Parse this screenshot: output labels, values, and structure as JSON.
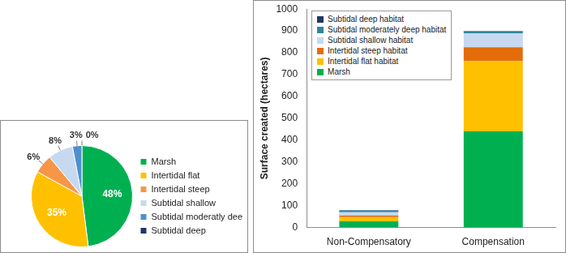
{
  "chart_data": [
    {
      "type": "pie",
      "categories": [
        "Marsh",
        "Intertidal flat",
        "Intertidal steep",
        "Subtidal shallow",
        "Subtidal moderatly deep",
        "Subtidal deep"
      ],
      "values": [
        48,
        35,
        6,
        8,
        3,
        0
      ],
      "value_labels": [
        "48%",
        "35%",
        "6%",
        "8%",
        "3%",
        "0%"
      ],
      "colors": [
        "#00b050",
        "#ffc000",
        "#f79646",
        "#c6d9f1",
        "#4f8fd0",
        "#1f3864"
      ],
      "data_labels": true,
      "legend": "right"
    },
    {
      "type": "bar",
      "stacked": true,
      "y_label": "Surface created (hectares)",
      "categories": [
        "Non-Compensatory",
        "Compensation"
      ],
      "series": [
        {
          "name": "Marsh",
          "color": "#00b050",
          "values": [
            28,
            440
          ]
        },
        {
          "name": "Intertidal flat habitat",
          "color": "#ffc000",
          "values": [
            20,
            322
          ]
        },
        {
          "name": "Intertidal steep habitat",
          "color": "#e46c0a",
          "values": [
            7,
            63
          ]
        },
        {
          "name": "Subtidal shallow habitat",
          "color": "#c6d9f1",
          "values": [
            15,
            63
          ]
        },
        {
          "name": "Subtidal moderately deep habitat",
          "color": "#31869b",
          "values": [
            8,
            10
          ]
        },
        {
          "name": "Subtidal deep habitat",
          "color": "#1f3864",
          "values": [
            2,
            2
          ]
        }
      ],
      "ylim": [
        0,
        1000
      ],
      "yticks": [
        0,
        100,
        200,
        300,
        400,
        500,
        600,
        700,
        800,
        900,
        1000
      ],
      "grid": false,
      "legend": "upper left"
    }
  ]
}
